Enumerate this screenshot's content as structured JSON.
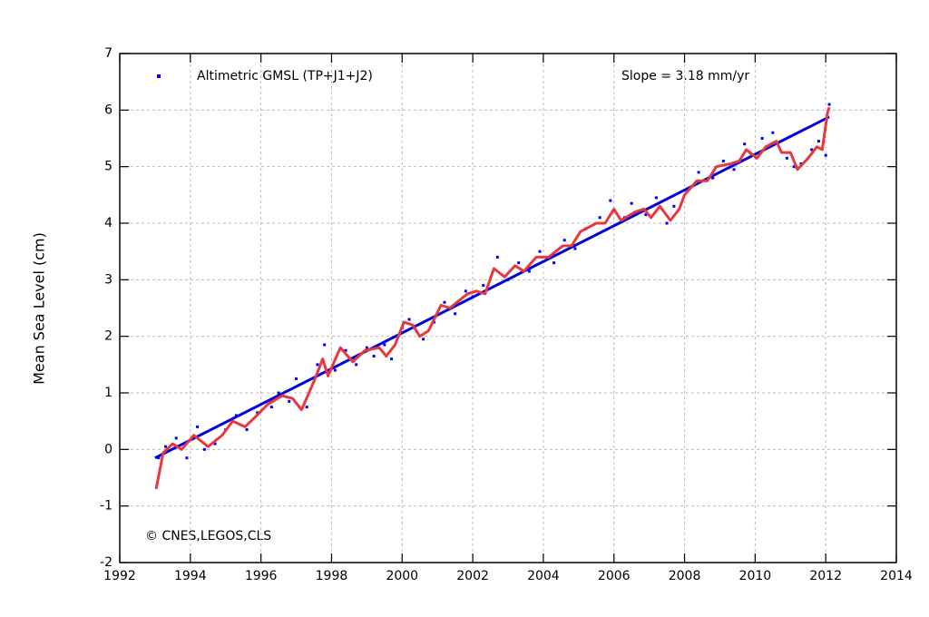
{
  "chart_data": {
    "type": "scatter",
    "ylabel": "Mean Sea Level (cm)",
    "annotations": [
      "Slope = 3.18 mm/yr",
      "© CNES,LEGOS,CLS"
    ],
    "xlim": [
      1992,
      2014
    ],
    "xticks": [
      1992,
      1994,
      1996,
      1998,
      2000,
      2002,
      2004,
      2006,
      2008,
      2010,
      2012,
      2014
    ],
    "ylim": [
      -2,
      7
    ],
    "yticks": [
      -2,
      -1,
      0,
      1,
      2,
      3,
      4,
      5,
      6,
      7
    ],
    "grid": true,
    "series": [
      {
        "name": "Altimetric GMSL (TP+J1+J2)",
        "type": "scatter",
        "color": "#0000ff",
        "x": [
          1993.1,
          1993.3,
          1993.6,
          1993.9,
          1994.2,
          1994.4,
          1994.7,
          1995.0,
          1995.3,
          1995.6,
          1995.9,
          1996.3,
          1996.5,
          1996.8,
          1997.0,
          1997.3,
          1997.6,
          1997.8,
          1998.1,
          1998.4,
          1998.7,
          1999.0,
          1999.2,
          1999.5,
          1999.7,
          2000.0,
          2000.2,
          2000.6,
          2000.9,
          2001.2,
          2001.5,
          2001.8,
          2002.0,
          2002.3,
          2002.7,
          2003.0,
          2003.3,
          2003.6,
          2003.9,
          2004.3,
          2004.6,
          2004.9,
          2005.2,
          2005.6,
          2005.9,
          2006.3,
          2006.5,
          2006.9,
          2007.2,
          2007.5,
          2007.7,
          2008.1,
          2008.4,
          2008.8,
          2009.1,
          2009.4,
          2009.7,
          2009.9,
          2010.2,
          2010.5,
          2010.9,
          2011.1,
          2011.3,
          2011.6,
          2011.8,
          2012.0,
          2012.1
        ],
        "values": [
          -0.15,
          0.05,
          0.2,
          -0.15,
          0.4,
          0.0,
          0.1,
          0.35,
          0.6,
          0.35,
          0.65,
          0.75,
          1.0,
          0.85,
          1.25,
          0.75,
          1.5,
          1.85,
          1.4,
          1.75,
          1.5,
          1.8,
          1.65,
          1.85,
          1.6,
          2.15,
          2.3,
          1.95,
          2.25,
          2.6,
          2.4,
          2.8,
          2.7,
          2.9,
          3.4,
          3.0,
          3.3,
          3.15,
          3.5,
          3.3,
          3.7,
          3.55,
          3.9,
          4.1,
          4.4,
          4.1,
          4.35,
          4.15,
          4.45,
          4.0,
          4.3,
          4.6,
          4.9,
          4.8,
          5.1,
          4.95,
          5.4,
          5.2,
          5.5,
          5.6,
          5.15,
          5.0,
          5.05,
          5.3,
          5.45,
          5.2,
          6.1
        ]
      },
      {
        "type": "line",
        "color": "#0000dd",
        "x": [
          1993.0,
          2012.1
        ],
        "values": [
          -0.15,
          5.88
        ]
      },
      {
        "type": "line",
        "color": "#e8383d",
        "x": [
          1993.03,
          1993.23,
          1993.5,
          1993.75,
          1994.1,
          1994.5,
          1994.9,
          1995.2,
          1995.55,
          1995.8,
          1996.2,
          1996.6,
          1996.9,
          1997.15,
          1997.5,
          1997.75,
          1997.9,
          1998.25,
          1998.6,
          1998.95,
          1999.35,
          1999.55,
          1999.8,
          2000.05,
          2000.3,
          2000.5,
          2000.75,
          2001.1,
          2001.35,
          2001.65,
          2001.85,
          2002.1,
          2002.35,
          2002.6,
          2002.9,
          2003.2,
          2003.45,
          2003.8,
          2004.15,
          2004.55,
          2004.8,
          2005.05,
          2005.5,
          2005.75,
          2006.0,
          2006.2,
          2006.6,
          2006.85,
          2007.05,
          2007.3,
          2007.6,
          2007.85,
          2008.0,
          2008.35,
          2008.65,
          2008.9,
          2009.3,
          2009.55,
          2009.75,
          2010.05,
          2010.3,
          2010.6,
          2010.75,
          2011.0,
          2011.2,
          2011.5,
          2011.75,
          2011.9,
          2012.05,
          2012.1
        ],
        "values": [
          -0.7,
          -0.06,
          0.1,
          0.0,
          0.25,
          0.05,
          0.25,
          0.5,
          0.4,
          0.55,
          0.8,
          0.95,
          0.9,
          0.7,
          1.2,
          1.6,
          1.3,
          1.8,
          1.55,
          1.75,
          1.8,
          1.65,
          1.85,
          2.25,
          2.2,
          2.0,
          2.1,
          2.55,
          2.5,
          2.65,
          2.75,
          2.8,
          2.75,
          3.2,
          3.05,
          3.25,
          3.15,
          3.4,
          3.4,
          3.6,
          3.6,
          3.85,
          4.0,
          4.0,
          4.25,
          4.05,
          4.2,
          4.25,
          4.1,
          4.3,
          4.05,
          4.25,
          4.5,
          4.75,
          4.75,
          5.0,
          5.05,
          5.1,
          5.3,
          5.15,
          5.35,
          5.45,
          5.25,
          5.25,
          4.95,
          5.15,
          5.35,
          5.3,
          5.95,
          6.05
        ]
      }
    ]
  }
}
